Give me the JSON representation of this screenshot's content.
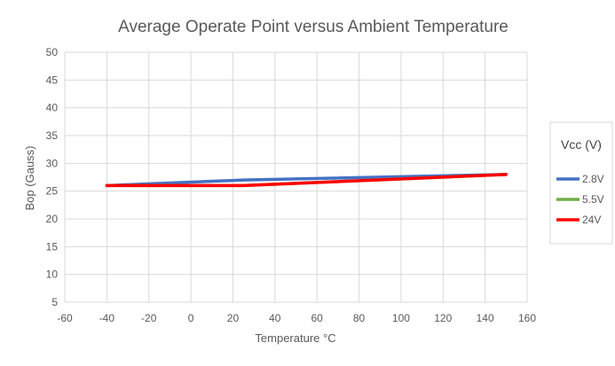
{
  "chart_data": {
    "type": "line",
    "title": "Average Operate Point versus Ambient Temperature",
    "xlabel": "Temperature °C",
    "ylabel": "Bop (Gauss)",
    "xlim": [
      -60,
      160
    ],
    "ylim": [
      5,
      50
    ],
    "xticks": [
      -60,
      -40,
      -20,
      0,
      20,
      40,
      60,
      80,
      100,
      120,
      140,
      160
    ],
    "yticks": [
      5,
      10,
      15,
      20,
      25,
      30,
      35,
      40,
      45,
      50
    ],
    "grid": true,
    "legend": {
      "title": "Vcc (V)",
      "placement": "right"
    },
    "series": [
      {
        "name": "2.8V",
        "color": "#4472c4",
        "x": [
          -40,
          25,
          150
        ],
        "y": [
          26,
          27,
          28
        ]
      },
      {
        "name": "5.5V",
        "color": "#70ad47",
        "x": [
          -40,
          25,
          150
        ],
        "y": [
          26,
          26,
          28
        ]
      },
      {
        "name": "24V",
        "color": "#ff0000",
        "x": [
          -40,
          25,
          150
        ],
        "y": [
          26,
          26,
          28
        ]
      }
    ]
  }
}
